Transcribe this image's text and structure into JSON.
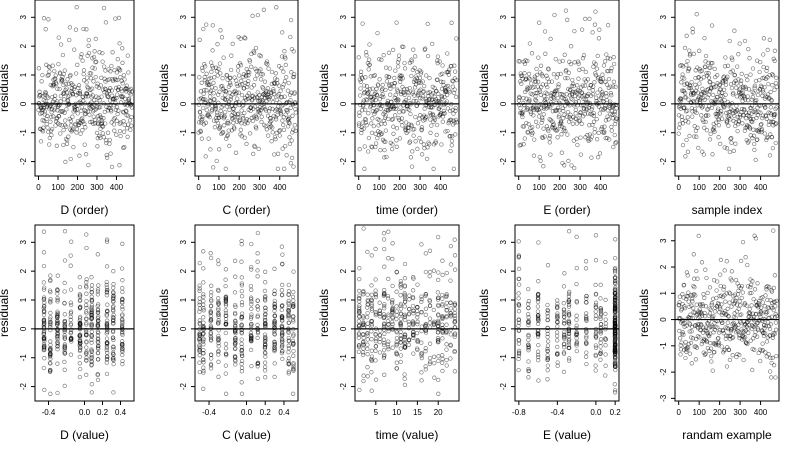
{
  "chart_data": [
    {
      "type": "scatter",
      "xlabel": "D (order)",
      "ylabel": "residuals",
      "x_kind": "order",
      "n": 480,
      "xlim": [
        -18,
        490
      ],
      "ylim": [
        -2.5,
        3.6
      ],
      "xticks": [
        "0",
        "100",
        "200",
        "300",
        "400"
      ],
      "xtick_values": [
        0,
        100,
        200,
        300,
        400
      ],
      "yticks": [
        "-2",
        "-1",
        "0",
        "1",
        "2",
        "3"
      ],
      "ytick_values": [
        -2,
        -1,
        0,
        1,
        2,
        3
      ],
      "reference_line_y": 0
    },
    {
      "type": "scatter",
      "xlabel": "C (order)",
      "ylabel": "residuals",
      "x_kind": "order",
      "n": 480,
      "xlim": [
        -18,
        490
      ],
      "ylim": [
        -2.5,
        3.6
      ],
      "xticks": [
        "0",
        "100",
        "200",
        "300",
        "400"
      ],
      "xtick_values": [
        0,
        100,
        200,
        300,
        400
      ],
      "yticks": [
        "-2",
        "-1",
        "0",
        "1",
        "2",
        "3"
      ],
      "ytick_values": [
        -2,
        -1,
        0,
        1,
        2,
        3
      ],
      "reference_line_y": 0
    },
    {
      "type": "scatter",
      "xlabel": "time (order)",
      "ylabel": "residuals",
      "x_kind": "order",
      "n": 480,
      "xlim": [
        -18,
        490
      ],
      "ylim": [
        -2.5,
        3.6
      ],
      "xticks": [
        "0",
        "100",
        "200",
        "300",
        "400"
      ],
      "xtick_values": [
        0,
        100,
        200,
        300,
        400
      ],
      "yticks": [
        "-2",
        "-1",
        "0",
        "1",
        "2",
        "3"
      ],
      "ytick_values": [
        -2,
        -1,
        0,
        1,
        2,
        3
      ],
      "reference_line_y": 0
    },
    {
      "type": "scatter",
      "xlabel": "E (order)",
      "ylabel": "residuals",
      "x_kind": "order",
      "n": 480,
      "xlim": [
        -18,
        490
      ],
      "ylim": [
        -2.5,
        3.6
      ],
      "xticks": [
        "0",
        "100",
        "200",
        "300",
        "400"
      ],
      "xtick_values": [
        0,
        100,
        200,
        300,
        400
      ],
      "yticks": [
        "-2",
        "-1",
        "0",
        "1",
        "2",
        "3"
      ],
      "ytick_values": [
        -2,
        -1,
        0,
        1,
        2,
        3
      ],
      "reference_line_y": 0
    },
    {
      "type": "scatter",
      "xlabel": "sample index",
      "ylabel": "residuals",
      "x_kind": "order",
      "n": 480,
      "xlim": [
        -18,
        490
      ],
      "ylim": [
        -2.5,
        3.6
      ],
      "xticks": [
        "0",
        "100",
        "200",
        "300",
        "400"
      ],
      "xtick_values": [
        0,
        100,
        200,
        300,
        400
      ],
      "yticks": [
        "-2",
        "-1",
        "0",
        "1",
        "2",
        "3"
      ],
      "ytick_values": [
        -2,
        -1,
        0,
        1,
        2,
        3
      ],
      "reference_line_y": 0
    },
    {
      "type": "scatter",
      "xlabel": "D (value)",
      "ylabel": "residuals",
      "x_kind": "levels",
      "x_levels": [
        -0.45,
        -0.38,
        -0.3,
        -0.22,
        -0.15,
        -0.05,
        0.02,
        0.08,
        0.15,
        0.25,
        0.32,
        0.42
      ],
      "n": 480,
      "xlim": [
        -0.55,
        0.55
      ],
      "ylim": [
        -2.5,
        3.6
      ],
      "xticks": [
        "-0.4",
        "0.0",
        "0.2",
        "0.4"
      ],
      "xtick_values": [
        -0.4,
        0,
        0.2,
        0.4
      ],
      "yticks": [
        "-2",
        "-1",
        "0",
        "1",
        "2",
        "3"
      ],
      "ytick_values": [
        -2,
        -1,
        0,
        1,
        2,
        3
      ],
      "reference_line_y": 0
    },
    {
      "type": "scatter",
      "xlabel": "C (value)",
      "ylabel": "residuals",
      "x_kind": "levels",
      "x_levels": [
        -0.5,
        -0.46,
        -0.38,
        -0.3,
        -0.22,
        -0.12,
        -0.05,
        0.05,
        0.12,
        0.2,
        0.3,
        0.38,
        0.45,
        0.5
      ],
      "n": 480,
      "xlim": [
        -0.55,
        0.55
      ],
      "ylim": [
        -2.5,
        3.6
      ],
      "xticks": [
        "-0.4",
        "0.0",
        "0.2",
        "0.4"
      ],
      "xtick_values": [
        -0.4,
        0,
        0.2,
        0.4
      ],
      "yticks": [
        "-2",
        "-1",
        "0",
        "1",
        "2",
        "3"
      ],
      "ytick_values": [
        -2,
        -1,
        0,
        1,
        2,
        3
      ],
      "reference_line_y": 0
    },
    {
      "type": "scatter",
      "xlabel": "time (value)",
      "ylabel": "residuals",
      "x_kind": "levels",
      "x_levels": [
        1,
        2,
        3,
        4,
        5,
        6,
        7,
        8,
        9,
        10,
        11,
        12,
        13,
        14,
        15,
        16,
        17,
        18,
        19,
        20,
        21,
        22,
        23,
        24
      ],
      "n": 480,
      "xlim": [
        0,
        25
      ],
      "ylim": [
        -2.5,
        3.6
      ],
      "xticks": [
        "5",
        "10",
        "15",
        "20"
      ],
      "xtick_values": [
        5,
        10,
        15,
        20
      ],
      "yticks": [
        "-2",
        "-1",
        "0",
        "1",
        "2",
        "3"
      ],
      "ytick_values": [
        -2,
        -1,
        0,
        1,
        2,
        3
      ],
      "reference_line_y": 0
    },
    {
      "type": "scatter",
      "xlabel": "E (value)",
      "ylabel": "residuals",
      "x_kind": "levels",
      "x_levels": [
        -0.8,
        -0.7,
        -0.6,
        -0.5,
        -0.4,
        -0.33,
        -0.28,
        -0.2,
        -0.1,
        0,
        0.05,
        0.1,
        0.2,
        0.2,
        0.2,
        0.2,
        0.2,
        0.2
      ],
      "n": 480,
      "xlim": [
        -0.84,
        0.24
      ],
      "ylim": [
        -2.5,
        3.6
      ],
      "xticks": [
        "-0.8",
        "-0.4",
        "0.0",
        "0.2"
      ],
      "xtick_values": [
        -0.8,
        -0.4,
        0,
        0.2
      ],
      "yticks": [
        "-2",
        "-1",
        "0",
        "1",
        "2",
        "3"
      ],
      "ytick_values": [
        -2,
        -1,
        0,
        1,
        2,
        3
      ],
      "reference_line_y": 0
    },
    {
      "type": "scatter",
      "xlabel": "randam example",
      "ylabel": "residuals",
      "x_kind": "order",
      "n": 480,
      "xlim": [
        -18,
        490
      ],
      "ylim": [
        -3.1,
        3.6
      ],
      "xticks": [
        "0",
        "100",
        "200",
        "300",
        "400"
      ],
      "xtick_values": [
        0,
        100,
        200,
        300,
        400
      ],
      "yticks": [
        "-3",
        "-2",
        "-1",
        "0",
        "1",
        "2",
        "3"
      ],
      "ytick_values": [
        -3,
        -2,
        -1,
        0,
        1,
        2,
        3
      ],
      "reference_line_y": 0
    }
  ]
}
